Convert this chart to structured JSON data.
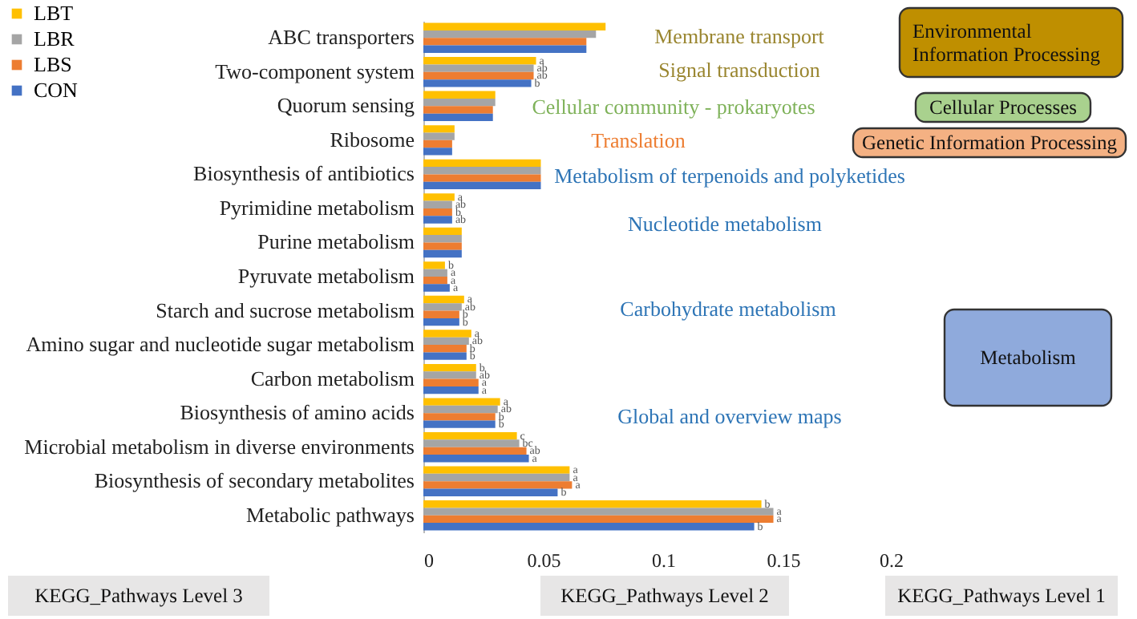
{
  "chart_data": {
    "type": "bar",
    "orientation": "horizontal",
    "categories": [
      "ABC transporters",
      "Two-component system",
      "Quorum sensing",
      "Ribosome",
      "Biosynthesis of antibiotics",
      "Pyrimidine metabolism",
      "Purine metabolism",
      "Pyruvate metabolism",
      "Starch and sucrose metabolism",
      "Amino sugar and nucleotide sugar metabolism",
      "Carbon metabolism",
      "Biosynthesis of amino acids",
      "Microbial metabolism in diverse environments",
      "Biosynthesis of secondary metabolites",
      "Metabolic pathways"
    ],
    "series": [
      {
        "name": "LBT",
        "color": "#ffc000",
        "values": [
          0.076,
          0.047,
          0.03,
          0.013,
          0.049,
          0.013,
          0.016,
          0.009,
          0.017,
          0.02,
          0.022,
          0.032,
          0.039,
          0.061,
          0.141
        ],
        "value_labels": [
          null,
          "a",
          null,
          null,
          null,
          "a",
          null,
          "b",
          "a",
          "a",
          "b",
          "a",
          "c",
          "a",
          "b"
        ]
      },
      {
        "name": "LBR",
        "color": "#a5a5a5",
        "values": [
          0.072,
          0.046,
          0.03,
          0.013,
          0.049,
          0.012,
          0.016,
          0.01,
          0.016,
          0.019,
          0.022,
          0.031,
          0.04,
          0.061,
          0.146
        ],
        "value_labels": [
          null,
          "ab",
          null,
          null,
          null,
          "ab",
          null,
          "a",
          "ab",
          "ab",
          "ab",
          "ab",
          "bc",
          "a",
          "a"
        ]
      },
      {
        "name": "LBS",
        "color": "#ed7d31",
        "values": [
          0.068,
          0.046,
          0.029,
          0.012,
          0.049,
          0.012,
          0.016,
          0.01,
          0.015,
          0.018,
          0.023,
          0.03,
          0.043,
          0.062,
          0.146
        ],
        "value_labels": [
          null,
          "ab",
          null,
          null,
          null,
          "b",
          null,
          "a",
          "b",
          "b",
          "a",
          "b",
          "ab",
          "a",
          "a"
        ]
      },
      {
        "name": "CON",
        "color": "#4472c4",
        "values": [
          0.068,
          0.045,
          0.029,
          0.012,
          0.049,
          0.012,
          0.016,
          0.011,
          0.015,
          0.018,
          0.023,
          0.03,
          0.044,
          0.056,
          0.138
        ],
        "value_labels": [
          null,
          "b",
          null,
          null,
          null,
          "ab",
          null,
          "a",
          "b",
          "b",
          "a",
          "b",
          "a",
          "b",
          "b"
        ]
      }
    ],
    "xlim": [
      0,
      0.2
    ],
    "xticks": [
      0,
      0.05,
      0.1,
      0.15,
      0.2
    ],
    "grid": false,
    "legend": "top left",
    "annotations": [
      "Membrane transport",
      "Signal transduction",
      "Cellular community - prokaryotes",
      "Translation",
      "Metabolism of terpenoids and polyketides",
      "Nucleotide metabolism",
      "Carbohydrate metabolism",
      "Global and overview maps",
      "Environmental Information Processing",
      "Cellular Processes",
      "Genetic Information Processing",
      "Metabolism",
      "KEGG_Pathways Level 3",
      "KEGG_Pathways Level 2",
      "KEGG_Pathways Level 1"
    ]
  }
}
